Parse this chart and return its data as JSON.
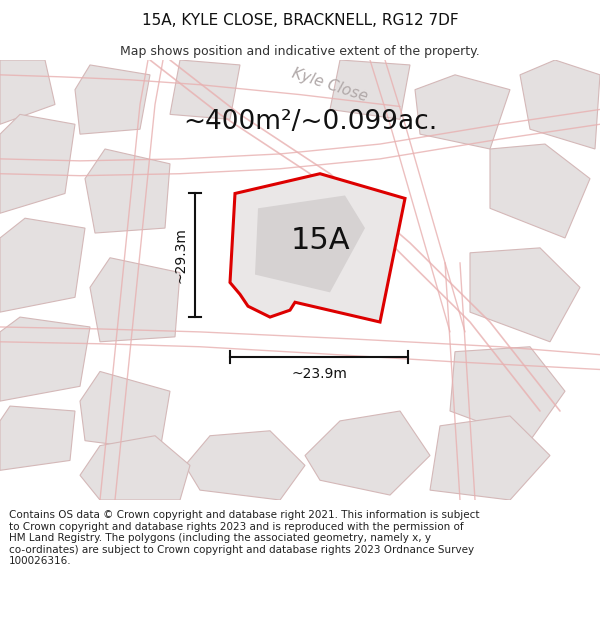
{
  "title": "15A, KYLE CLOSE, BRACKNELL, RG12 7DF",
  "subtitle": "Map shows position and indicative extent of the property.",
  "area_label": "~400m²/~0.099ac.",
  "plot_label": "15A",
  "dim_height": "~29.3m",
  "dim_width": "~23.9m",
  "street_label": "Kyle Close",
  "footer_text": "Contains OS data © Crown copyright and database right 2021. This information is subject\nto Crown copyright and database rights 2023 and is reproduced with the permission of\nHM Land Registry. The polygons (including the associated geometry, namely x, y\nco-ordinates) are subject to Crown copyright and database rights 2023 Ordnance Survey\n100026316.",
  "map_bg": "#f2efef",
  "property_fill": "#eae7e7",
  "property_edge": "#dd0000",
  "bg_poly_fc": "#e4e0e0",
  "bg_poly_ec": "#d4b8b8",
  "road_color": "#e8b0b0",
  "title_fontsize": 11,
  "subtitle_fontsize": 9,
  "area_fontsize": 19,
  "label_fontsize": 22,
  "dim_fontsize": 10,
  "street_fontsize": 11,
  "footer_fontsize": 7.5
}
